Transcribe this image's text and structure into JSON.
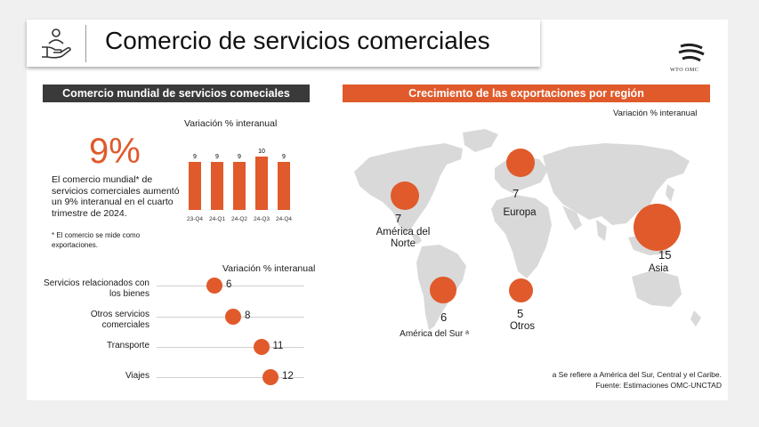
{
  "title": "Comercio de servicios comerciales",
  "logo_text": "WTO OMC",
  "left": {
    "header": "Comercio mundial de servicios comeciales",
    "big_value": "9%",
    "description": "El comercio mundial* de servicios comerciales aumentó un 9% interanual en el cuarto trimestre de 2024.",
    "note": "* El comercio se mide como exportaciones."
  },
  "right": {
    "header": "Crecimiento de las exportaciones por región",
    "subtitle": "Variación % interanual",
    "footnote": "a Se refiere a América del Sur, Central y el Caribe.",
    "source": "Fuente: Estimaciones OMC-UNCTAD"
  },
  "colors": {
    "accent": "#e05a2b",
    "dark": "#3a3a3a",
    "map": "#d9d9d9"
  },
  "chart_data": [
    {
      "type": "bar",
      "title": "Variación % interanual",
      "categories": [
        "23-Q4",
        "24-Q1",
        "24-Q2",
        "24-Q3",
        "24-Q4"
      ],
      "values": [
        9,
        9,
        9,
        10,
        9
      ],
      "ylim": [
        0,
        11
      ]
    },
    {
      "type": "scatter",
      "title": "Variación % interanual",
      "categories": [
        "Servicios relacionados con los bienes",
        "Otros servicios comerciales",
        "Transporte",
        "Viajes"
      ],
      "values": [
        6,
        8,
        11,
        12
      ],
      "xlim": [
        0,
        14
      ]
    },
    {
      "type": "scatter",
      "title": "Variación % interanual",
      "regions": [
        {
          "name": "América del Norte",
          "value": 7
        },
        {
          "name": "Europa",
          "value": 7
        },
        {
          "name": "Asia",
          "value": 15
        },
        {
          "name": "América del Sur ᵃ",
          "value": 6
        },
        {
          "name": "Otros",
          "value": 5
        }
      ]
    }
  ]
}
